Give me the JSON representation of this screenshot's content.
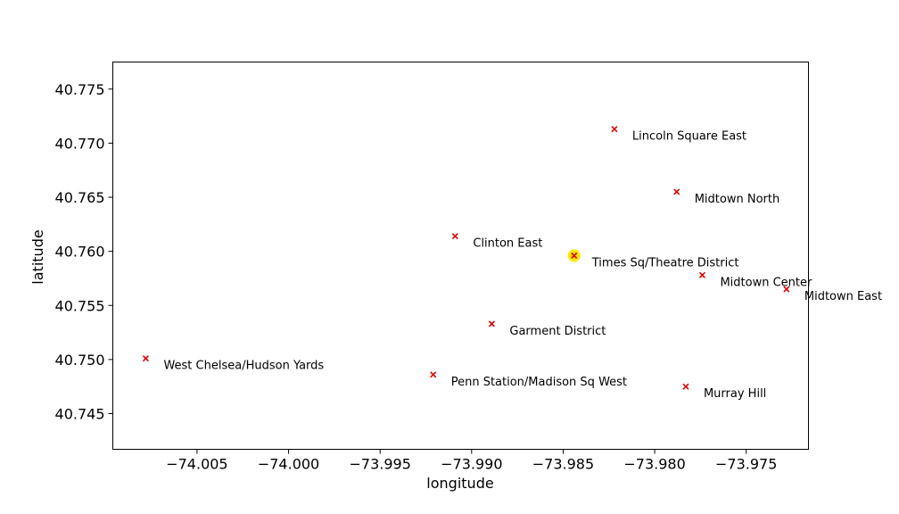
{
  "chart_data": {
    "type": "scatter",
    "xlabel": "longitude",
    "ylabel": "latitude",
    "xlim": [
      -74.0096,
      -73.9716
    ],
    "ylim": [
      40.7775,
      40.7417
    ],
    "y_inverted": true,
    "grid": false,
    "legend": "none",
    "x_ticks": [
      {
        "value": -74.005,
        "label": "−74.005"
      },
      {
        "value": -74.0,
        "label": "−74.000"
      },
      {
        "value": -73.995,
        "label": "−73.995"
      },
      {
        "value": -73.99,
        "label": "−73.990"
      },
      {
        "value": -73.985,
        "label": "−73.985"
      },
      {
        "value": -73.98,
        "label": "−73.980"
      },
      {
        "value": -73.975,
        "label": "−73.975"
      }
    ],
    "y_ticks": [
      {
        "value": 40.745,
        "label": "40.745"
      },
      {
        "value": 40.75,
        "label": "40.750"
      },
      {
        "value": 40.755,
        "label": "40.755"
      },
      {
        "value": 40.76,
        "label": "40.760"
      },
      {
        "value": 40.765,
        "label": "40.765"
      },
      {
        "value": 40.77,
        "label": "40.770"
      },
      {
        "value": 40.775,
        "label": "40.775"
      }
    ],
    "marker_color": "#e00000",
    "highlight_color": "#ffe600",
    "points": [
      {
        "name": "West Chelsea/Hudson Yards",
        "lon": -74.0078,
        "lat": 40.7501
      },
      {
        "name": "Penn Station/Madison Sq West",
        "lon": -73.9921,
        "lat": 40.7486
      },
      {
        "name": "Murray Hill",
        "lon": -73.9783,
        "lat": 40.7475
      },
      {
        "name": "Garment District",
        "lon": -73.9889,
        "lat": 40.7533
      },
      {
        "name": "Midtown East",
        "lon": -73.9728,
        "lat": 40.7565
      },
      {
        "name": "Midtown Center",
        "lon": -73.9774,
        "lat": 40.7578
      },
      {
        "name": "Times Sq/Theatre District",
        "lon": -73.9844,
        "lat": 40.7596,
        "highlight": true
      },
      {
        "name": "Clinton East",
        "lon": -73.9909,
        "lat": 40.7614
      },
      {
        "name": "Midtown North",
        "lon": -73.9788,
        "lat": 40.7655
      },
      {
        "name": "Lincoln Square East",
        "lon": -73.9822,
        "lat": 40.7713
      }
    ]
  }
}
